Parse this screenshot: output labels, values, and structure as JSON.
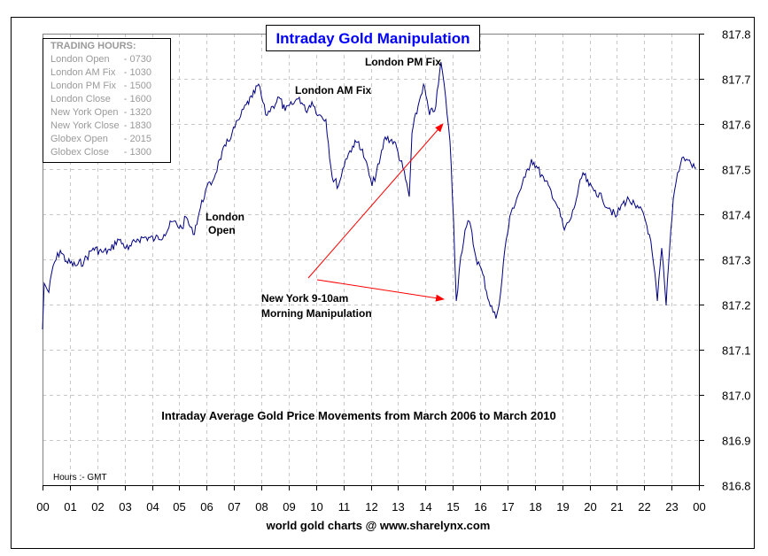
{
  "chart_data": {
    "type": "line",
    "title": "Intraday Gold Manipulation",
    "subtitle": "Intraday Average Gold Price Movements from March 2006 to March 2010",
    "footer": "world gold charts @ www.sharelynx.com",
    "xlabel_note": "Hours :- GMT",
    "xlim": [
      0,
      24
    ],
    "ylim": [
      816.8,
      817.8
    ],
    "x_ticks": [
      "00",
      "01",
      "02",
      "03",
      "04",
      "05",
      "06",
      "07",
      "08",
      "09",
      "10",
      "11",
      "12",
      "13",
      "14",
      "15",
      "16",
      "17",
      "18",
      "19",
      "20",
      "21",
      "22",
      "23",
      "00"
    ],
    "y_ticks": [
      "816.8",
      "816.9",
      "817.0",
      "817.1",
      "817.2",
      "817.3",
      "817.4",
      "817.5",
      "817.6",
      "817.7",
      "817.8"
    ],
    "grid": true,
    "y_axis_position": "right",
    "line_color": "#000080",
    "title_color": "#0000ff",
    "arrow_color": "#ff0000",
    "legend": {
      "title": "TRADING HOURS:",
      "placement": "top-left",
      "items": [
        {
          "label": "London Open",
          "time": "- 0730"
        },
        {
          "label": "London AM Fix",
          "time": "- 1030"
        },
        {
          "label": "London PM Fix",
          "time": "- 1500"
        },
        {
          "label": "London Close",
          "time": "- 1600"
        },
        {
          "label": "New York Open",
          "time": "- 1320"
        },
        {
          "label": "New York Close",
          "time": "- 1830"
        },
        {
          "label": "Globex Open",
          "time": "- 2015"
        },
        {
          "label": "Globex Close",
          "time": "- 1300"
        }
      ]
    },
    "annotations": {
      "london_open": [
        "London",
        "Open"
      ],
      "london_am_fix": "London AM Fix",
      "london_pm_fix": "London PM Fix",
      "new_york": [
        "New York 9-10am",
        "Morning Manipulation"
      ]
    },
    "x": [
      0,
      0.06,
      0.23,
      0.39,
      0.65,
      0.87,
      1.2,
      1.52,
      1.85,
      2.17,
      2.49,
      2.75,
      3.14,
      3.47,
      3.79,
      4.11,
      4.44,
      4.76,
      5.09,
      5.25,
      5.51,
      5.73,
      5.96,
      6.22,
      6.48,
      6.7,
      6.93,
      7.19,
      7.45,
      7.67,
      7.9,
      8.16,
      8.42,
      8.65,
      8.87,
      9.13,
      9.39,
      9.62,
      9.85,
      10.11,
      10.36,
      10.59,
      10.82,
      11.08,
      11.34,
      11.56,
      11.79,
      12.05,
      12.31,
      12.53,
      12.86,
      13.18,
      13.41,
      13.51,
      13.73,
      13.93,
      14.15,
      14.38,
      14.57,
      14.74,
      14.9,
      15.03,
      15.13,
      15.29,
      15.45,
      15.61,
      15.84,
      16.1,
      16.32,
      16.58,
      16.75,
      16.91,
      17.13,
      17.39,
      17.65,
      17.88,
      18.1,
      18.36,
      18.59,
      18.85,
      19.08,
      19.34,
      19.56,
      19.76,
      19.98,
      20.21,
      20.47,
      20.73,
      20.96,
      21.21,
      21.44,
      21.7,
      21.96,
      22.19,
      22.35,
      22.48,
      22.64,
      22.8,
      22.93,
      23.06,
      23.22,
      23.38,
      23.55,
      23.71,
      23.9
    ],
    "y": [
      817.145,
      817.247,
      817.227,
      817.286,
      817.32,
      817.296,
      817.286,
      817.296,
      817.325,
      817.316,
      817.32,
      817.345,
      817.322,
      817.345,
      817.349,
      817.345,
      817.355,
      817.384,
      817.369,
      817.394,
      817.355,
      817.404,
      817.453,
      817.473,
      817.522,
      817.551,
      817.58,
      817.61,
      817.643,
      817.659,
      817.688,
      817.62,
      817.639,
      817.659,
      817.629,
      817.643,
      817.659,
      817.629,
      817.649,
      817.62,
      817.61,
      817.482,
      817.463,
      817.522,
      817.551,
      817.561,
      817.522,
      817.463,
      817.512,
      817.571,
      817.561,
      817.502,
      817.439,
      817.58,
      817.639,
      817.688,
      817.62,
      817.639,
      817.737,
      817.659,
      817.561,
      817.384,
      817.208,
      817.306,
      817.365,
      817.384,
      817.306,
      817.267,
      817.208,
      817.169,
      817.227,
      817.325,
      817.404,
      817.443,
      817.482,
      817.522,
      817.502,
      817.473,
      817.453,
      817.414,
      817.365,
      817.394,
      817.443,
      817.492,
      817.463,
      817.453,
      817.433,
      817.414,
      817.394,
      817.424,
      817.433,
      817.414,
      817.404,
      817.355,
      817.286,
      817.208,
      817.325,
      817.198,
      817.325,
      817.433,
      817.492,
      817.525,
      817.522,
      817.512,
      817.502
    ]
  }
}
